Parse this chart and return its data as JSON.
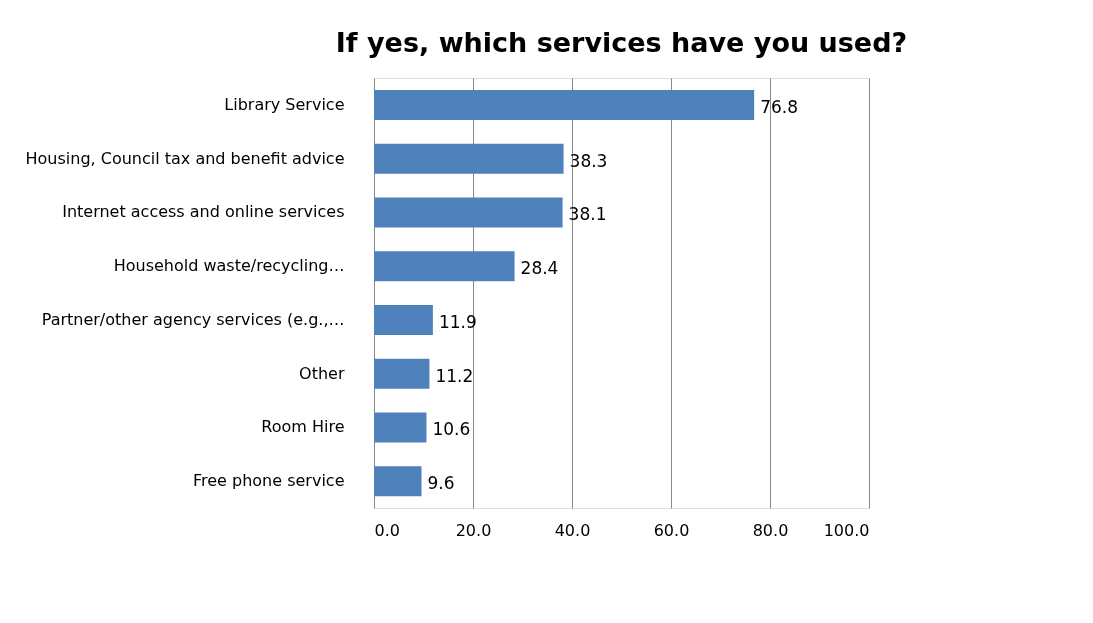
{
  "chart_data": {
    "type": "bar",
    "orientation": "horizontal",
    "title": "If yes, which services have you used?",
    "categories": [
      "Library Service",
      "Housing, Council tax and benefit advice",
      "Internet access and online services",
      "Household waste/recycling…",
      "Partner/other agency services (e.g.,…",
      "Other",
      "Room Hire",
      "Free phone service"
    ],
    "series": [
      {
        "color": "#4f81bd",
        "values": [
          76.8,
          38.3,
          38.1,
          28.4,
          11.9,
          11.2,
          10.6,
          9.6
        ]
      }
    ],
    "xlim": [
      0,
      100
    ],
    "xticks": [
      {
        "value": 0,
        "label": "0.0"
      },
      {
        "value": 20,
        "label": "20.0"
      },
      {
        "value": 40,
        "label": "40.0"
      },
      {
        "value": 60,
        "label": "60.0"
      },
      {
        "value": 80,
        "label": "80.0"
      },
      {
        "value": 100,
        "label": "100.0"
      }
    ],
    "grid": "x",
    "data_labels": true
  }
}
